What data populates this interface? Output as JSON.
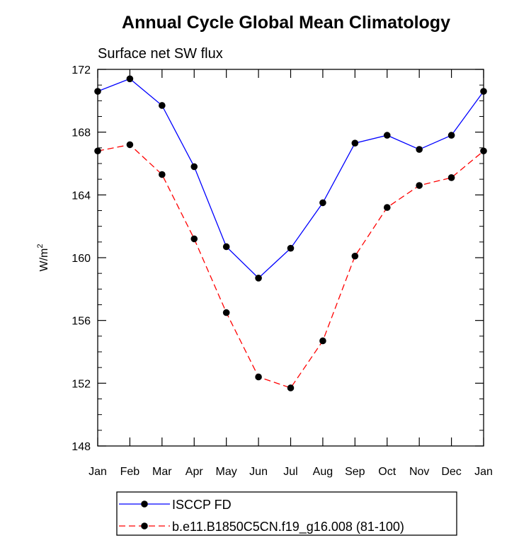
{
  "chart_data": {
    "type": "line",
    "title": "Annual Cycle Global Mean Climatology",
    "subtitle": "Surface net SW flux",
    "xlabel": "",
    "ylabel": "W/m",
    "ylabel_superscript": "2",
    "ylim": [
      148,
      172
    ],
    "yticks": [
      148,
      152,
      156,
      160,
      164,
      168,
      172
    ],
    "ytick_labels": [
      "148",
      "152",
      "156",
      "160",
      "164",
      "168",
      "172"
    ],
    "categories": [
      "Jan",
      "Feb",
      "Mar",
      "Apr",
      "May",
      "Jun",
      "Jul",
      "Aug",
      "Sep",
      "Oct",
      "Nov",
      "Dec",
      "Jan"
    ],
    "grid": false,
    "legend_position": "bottom",
    "series": [
      {
        "name": "ISCCP FD",
        "color": "#0000ff",
        "style": "solid",
        "values": [
          170.6,
          171.4,
          169.7,
          165.8,
          160.7,
          158.7,
          160.6,
          163.5,
          167.3,
          167.8,
          166.9,
          167.8,
          170.6
        ]
      },
      {
        "name": "b.e11.B1850C5CN.f19_g16.008 (81-100)",
        "color": "#ff0000",
        "style": "dashed",
        "values": [
          166.8,
          167.2,
          165.3,
          161.2,
          156.5,
          152.4,
          151.7,
          154.7,
          160.1,
          163.2,
          164.6,
          165.1,
          166.8
        ]
      }
    ]
  }
}
